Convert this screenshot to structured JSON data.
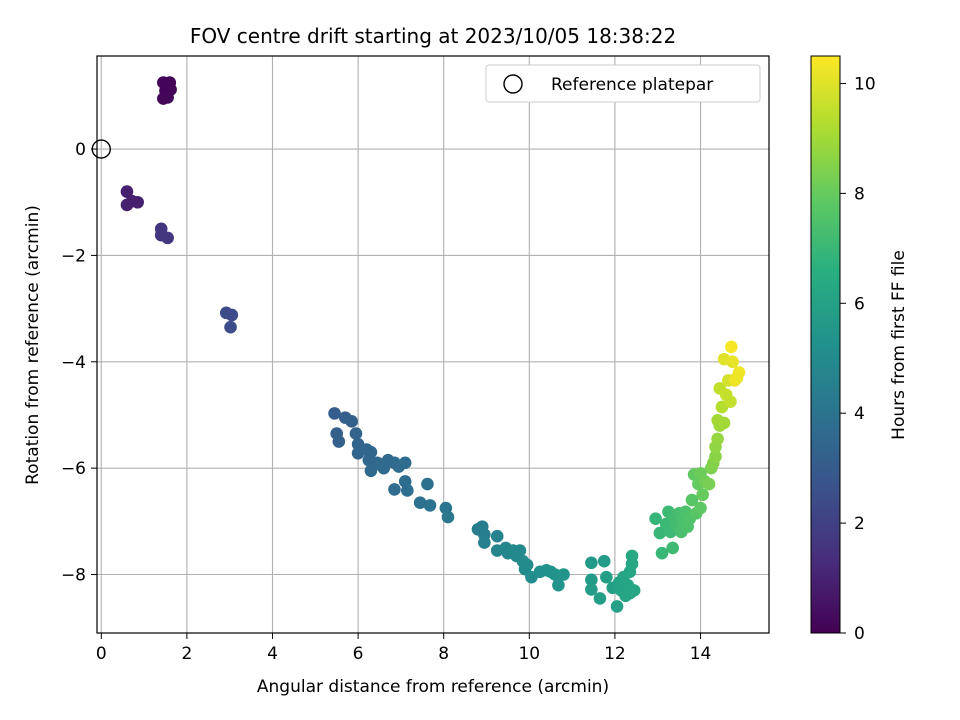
{
  "chart_data": {
    "type": "scatter",
    "title": "FOV centre drift starting at 2023/10/05 18:38:22",
    "xlabel": "Angular distance from reference (arcmin)",
    "ylabel": "Rotation from reference (arcmin)",
    "xlim": [
      -0.1,
      15.6
    ],
    "ylim": [
      -9.1,
      1.75
    ],
    "xticks": [
      0,
      2,
      4,
      6,
      8,
      10,
      12,
      14
    ],
    "yticks": [
      0,
      -2,
      -4,
      -6,
      -8
    ],
    "grid": true,
    "legend": {
      "position": "top-right",
      "entries": [
        "Reference platepar"
      ]
    },
    "reference_point": {
      "x": 0,
      "y": 0
    },
    "colorbar": {
      "label": "Hours from first FF file",
      "colormap": "viridis",
      "min": 0,
      "max": 10.5,
      "ticks": [
        0,
        2,
        4,
        6,
        8,
        10
      ]
    },
    "points": [
      {
        "x": 1.45,
        "y": 1.25,
        "h": 0.1
      },
      {
        "x": 1.6,
        "y": 1.25,
        "h": 0.1
      },
      {
        "x": 1.5,
        "y": 1.1,
        "h": 0.12
      },
      {
        "x": 1.62,
        "y": 1.12,
        "h": 0.12
      },
      {
        "x": 1.45,
        "y": 0.95,
        "h": 0.15
      },
      {
        "x": 1.55,
        "y": 0.97,
        "h": 0.15
      },
      {
        "x": 1.58,
        "y": 1.2,
        "h": 0.1
      },
      {
        "x": 0.6,
        "y": -0.8,
        "h": 0.9
      },
      {
        "x": 0.6,
        "y": -1.05,
        "h": 0.95
      },
      {
        "x": 0.85,
        "y": -1.0,
        "h": 0.95
      },
      {
        "x": 0.72,
        "y": -0.98,
        "h": 0.92
      },
      {
        "x": 1.4,
        "y": -1.5,
        "h": 1.6
      },
      {
        "x": 1.4,
        "y": -1.62,
        "h": 1.62
      },
      {
        "x": 1.55,
        "y": -1.67,
        "h": 1.65
      },
      {
        "x": 2.92,
        "y": -3.08,
        "h": 2.4
      },
      {
        "x": 3.05,
        "y": -3.12,
        "h": 2.42
      },
      {
        "x": 3.02,
        "y": -3.35,
        "h": 2.45
      },
      {
        "x": 5.45,
        "y": -4.97,
        "h": 3.1
      },
      {
        "x": 5.7,
        "y": -5.05,
        "h": 3.15
      },
      {
        "x": 5.85,
        "y": -5.12,
        "h": 3.2
      },
      {
        "x": 5.5,
        "y": -5.35,
        "h": 3.2
      },
      {
        "x": 5.55,
        "y": -5.5,
        "h": 3.25
      },
      {
        "x": 5.95,
        "y": -5.35,
        "h": 3.3
      },
      {
        "x": 6.0,
        "y": -5.55,
        "h": 3.35
      },
      {
        "x": 6.0,
        "y": -5.72,
        "h": 3.4
      },
      {
        "x": 6.2,
        "y": -5.65,
        "h": 3.45
      },
      {
        "x": 6.3,
        "y": -5.7,
        "h": 3.5
      },
      {
        "x": 6.25,
        "y": -5.85,
        "h": 3.5
      },
      {
        "x": 6.3,
        "y": -6.05,
        "h": 3.55
      },
      {
        "x": 6.45,
        "y": -5.9,
        "h": 3.55
      },
      {
        "x": 6.55,
        "y": -5.95,
        "h": 3.6
      },
      {
        "x": 6.6,
        "y": -6.0,
        "h": 3.6
      },
      {
        "x": 6.7,
        "y": -5.85,
        "h": 3.6
      },
      {
        "x": 6.85,
        "y": -5.9,
        "h": 3.65
      },
      {
        "x": 6.85,
        "y": -6.4,
        "h": 3.7
      },
      {
        "x": 6.95,
        "y": -5.97,
        "h": 3.7
      },
      {
        "x": 7.1,
        "y": -5.9,
        "h": 3.72
      },
      {
        "x": 7.1,
        "y": -6.25,
        "h": 3.75
      },
      {
        "x": 7.15,
        "y": -6.42,
        "h": 3.78
      },
      {
        "x": 7.45,
        "y": -6.65,
        "h": 3.9
      },
      {
        "x": 7.62,
        "y": -6.3,
        "h": 3.95
      },
      {
        "x": 7.68,
        "y": -6.7,
        "h": 4.0
      },
      {
        "x": 8.05,
        "y": -6.75,
        "h": 4.1
      },
      {
        "x": 8.1,
        "y": -6.92,
        "h": 4.15
      },
      {
        "x": 8.8,
        "y": -7.15,
        "h": 4.4
      },
      {
        "x": 8.9,
        "y": -7.1,
        "h": 4.45
      },
      {
        "x": 8.95,
        "y": -7.25,
        "h": 4.5
      },
      {
        "x": 8.95,
        "y": -7.4,
        "h": 4.55
      },
      {
        "x": 9.25,
        "y": -7.28,
        "h": 4.65
      },
      {
        "x": 9.25,
        "y": -7.55,
        "h": 4.7
      },
      {
        "x": 9.45,
        "y": -7.5,
        "h": 4.75
      },
      {
        "x": 9.5,
        "y": -7.6,
        "h": 4.8
      },
      {
        "x": 9.62,
        "y": -7.55,
        "h": 4.85
      },
      {
        "x": 9.7,
        "y": -7.65,
        "h": 4.9
      },
      {
        "x": 9.78,
        "y": -7.55,
        "h": 4.9
      },
      {
        "x": 9.85,
        "y": -7.75,
        "h": 4.95
      },
      {
        "x": 9.95,
        "y": -7.82,
        "h": 5.0
      },
      {
        "x": 9.9,
        "y": -7.9,
        "h": 5.0
      },
      {
        "x": 10.05,
        "y": -8.05,
        "h": 5.1
      },
      {
        "x": 10.25,
        "y": -7.95,
        "h": 5.2
      },
      {
        "x": 10.4,
        "y": -7.92,
        "h": 5.25
      },
      {
        "x": 10.5,
        "y": -7.95,
        "h": 5.3
      },
      {
        "x": 10.6,
        "y": -8.0,
        "h": 5.35
      },
      {
        "x": 10.68,
        "y": -8.2,
        "h": 5.4
      },
      {
        "x": 10.8,
        "y": -8.0,
        "h": 5.45
      },
      {
        "x": 11.45,
        "y": -7.78,
        "h": 5.6
      },
      {
        "x": 11.75,
        "y": -7.75,
        "h": 5.7
      },
      {
        "x": 11.45,
        "y": -8.1,
        "h": 5.7
      },
      {
        "x": 11.45,
        "y": -8.28,
        "h": 5.75
      },
      {
        "x": 11.65,
        "y": -8.45,
        "h": 5.8
      },
      {
        "x": 11.8,
        "y": -8.05,
        "h": 5.85
      },
      {
        "x": 11.95,
        "y": -8.25,
        "h": 5.9
      },
      {
        "x": 12.05,
        "y": -8.6,
        "h": 5.95
      },
      {
        "x": 12.1,
        "y": -8.15,
        "h": 6.0
      },
      {
        "x": 12.15,
        "y": -8.3,
        "h": 6.05
      },
      {
        "x": 12.2,
        "y": -8.05,
        "h": 6.1
      },
      {
        "x": 12.25,
        "y": -8.4,
        "h": 6.1
      },
      {
        "x": 12.3,
        "y": -8.2,
        "h": 6.15
      },
      {
        "x": 12.35,
        "y": -7.95,
        "h": 6.2
      },
      {
        "x": 12.4,
        "y": -7.8,
        "h": 6.25
      },
      {
        "x": 12.4,
        "y": -7.65,
        "h": 6.3
      },
      {
        "x": 12.45,
        "y": -8.3,
        "h": 6.3
      },
      {
        "x": 12.35,
        "y": -8.35,
        "h": 6.2
      },
      {
        "x": 12.95,
        "y": -6.95,
        "h": 6.9
      },
      {
        "x": 13.05,
        "y": -7.22,
        "h": 6.95
      },
      {
        "x": 13.1,
        "y": -7.6,
        "h": 7.0
      },
      {
        "x": 13.2,
        "y": -7.05,
        "h": 7.05
      },
      {
        "x": 13.25,
        "y": -6.82,
        "h": 7.1
      },
      {
        "x": 13.3,
        "y": -7.2,
        "h": 7.1
      },
      {
        "x": 13.35,
        "y": -7.5,
        "h": 7.15
      },
      {
        "x": 13.4,
        "y": -6.95,
        "h": 7.2
      },
      {
        "x": 13.45,
        "y": -7.1,
        "h": 7.25
      },
      {
        "x": 13.5,
        "y": -6.85,
        "h": 7.3
      },
      {
        "x": 13.55,
        "y": -7.2,
        "h": 7.35
      },
      {
        "x": 13.6,
        "y": -7.0,
        "h": 7.4
      },
      {
        "x": 13.65,
        "y": -6.82,
        "h": 7.45
      },
      {
        "x": 13.7,
        "y": -7.1,
        "h": 7.5
      },
      {
        "x": 13.75,
        "y": -6.95,
        "h": 7.55
      },
      {
        "x": 13.8,
        "y": -6.6,
        "h": 7.7
      },
      {
        "x": 13.85,
        "y": -6.12,
        "h": 7.9
      },
      {
        "x": 13.9,
        "y": -6.85,
        "h": 7.7
      },
      {
        "x": 13.95,
        "y": -6.3,
        "h": 7.95
      },
      {
        "x": 14.0,
        "y": -6.1,
        "h": 8.1
      },
      {
        "x": 14.05,
        "y": -6.5,
        "h": 8.0
      },
      {
        "x": 14.0,
        "y": -6.75,
        "h": 7.85
      },
      {
        "x": 14.1,
        "y": -6.25,
        "h": 8.15
      },
      {
        "x": 14.2,
        "y": -6.3,
        "h": 8.3
      },
      {
        "x": 14.25,
        "y": -6.0,
        "h": 8.4
      },
      {
        "x": 14.3,
        "y": -5.9,
        "h": 8.5
      },
      {
        "x": 14.35,
        "y": -5.78,
        "h": 8.6
      },
      {
        "x": 14.35,
        "y": -5.6,
        "h": 8.7
      },
      {
        "x": 14.4,
        "y": -5.45,
        "h": 8.8
      },
      {
        "x": 14.45,
        "y": -5.2,
        "h": 8.9
      },
      {
        "x": 14.4,
        "y": -5.1,
        "h": 9.0
      },
      {
        "x": 14.55,
        "y": -5.15,
        "h": 9.0
      },
      {
        "x": 14.5,
        "y": -4.85,
        "h": 9.3
      },
      {
        "x": 14.45,
        "y": -4.5,
        "h": 9.5
      },
      {
        "x": 14.6,
        "y": -4.62,
        "h": 9.6
      },
      {
        "x": 14.7,
        "y": -4.75,
        "h": 9.55
      },
      {
        "x": 14.65,
        "y": -4.35,
        "h": 9.8
      },
      {
        "x": 14.55,
        "y": -3.95,
        "h": 10.0
      },
      {
        "x": 14.75,
        "y": -4.0,
        "h": 10.1
      },
      {
        "x": 14.8,
        "y": -4.35,
        "h": 10.2
      },
      {
        "x": 14.9,
        "y": -4.2,
        "h": 10.3
      },
      {
        "x": 14.72,
        "y": -3.72,
        "h": 10.4
      },
      {
        "x": 14.85,
        "y": -4.3,
        "h": 10.25
      }
    ]
  }
}
